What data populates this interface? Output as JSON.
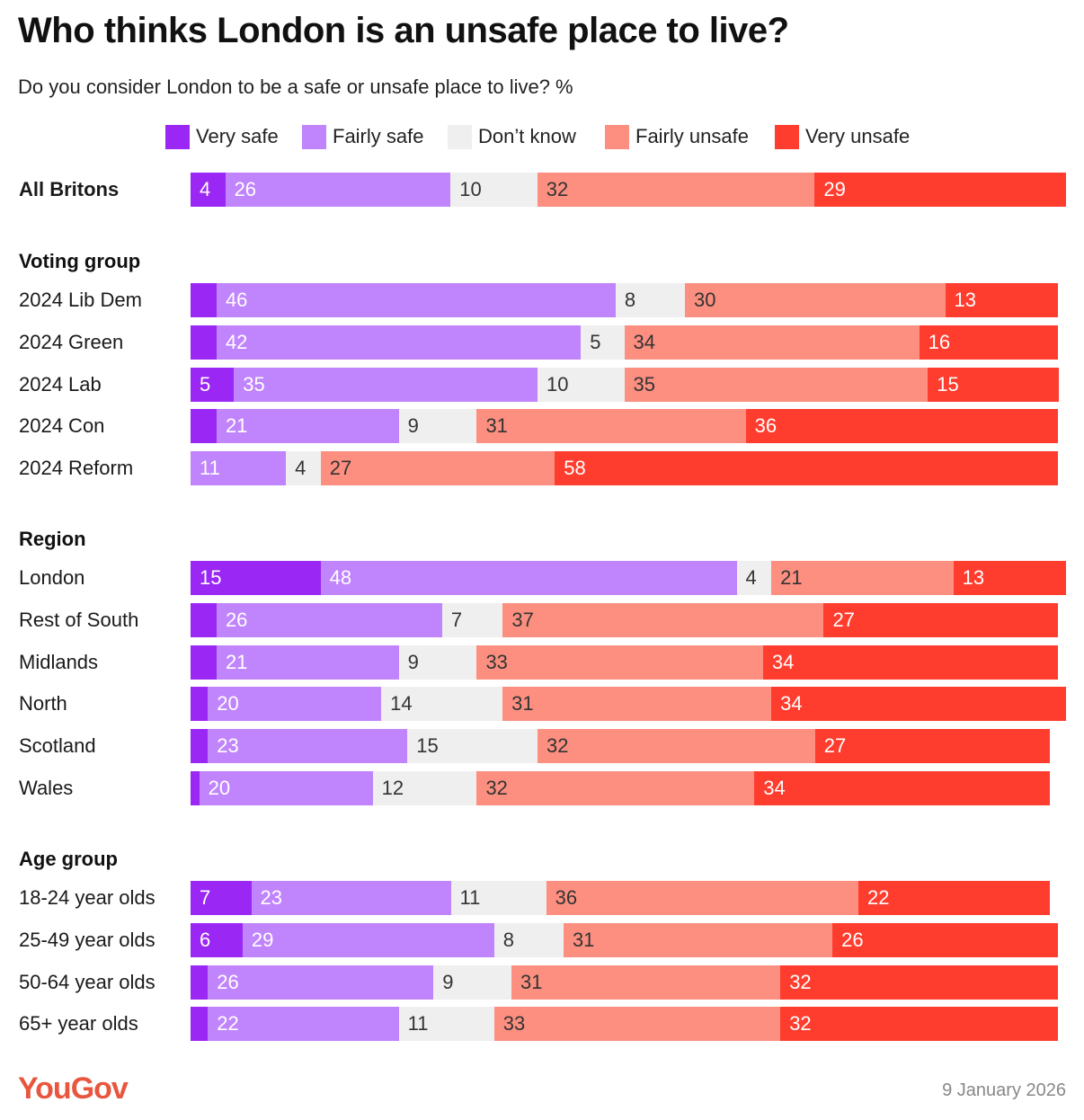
{
  "title": "Who thinks London is an unsafe place to live?",
  "subtitle": "Do you consider London to be a safe or unsafe place to live? %",
  "colors": {
    "very_safe": "#9b27f5",
    "fairly_safe": "#c084fc",
    "dont_know": "#efefef",
    "fairly_unsafe": "#fc8f80",
    "very_unsafe": "#ff3d2e",
    "brand": "#e8563f"
  },
  "legend": [
    {
      "key": "very_safe",
      "label": "Very safe"
    },
    {
      "key": "fairly_safe",
      "label": "Fairly safe"
    },
    {
      "key": "dont_know",
      "label": "Don’t know"
    },
    {
      "key": "fairly_unsafe",
      "label": "Fairly unsafe"
    },
    {
      "key": "very_unsafe",
      "label": "Very unsafe"
    }
  ],
  "chart_data": {
    "type": "bar",
    "orientation": "horizontal",
    "stacked": true,
    "legend_position": "top",
    "grid": false,
    "series_order": [
      "Very safe",
      "Fairly safe",
      "Don’t know",
      "Fairly unsafe",
      "Very unsafe"
    ],
    "groups": [
      {
        "heading": "",
        "rows": [
          {
            "label": "All Britons",
            "values": [
              4,
              26,
              10,
              32,
              29
            ]
          }
        ]
      },
      {
        "heading": "Voting group",
        "rows": [
          {
            "label": "2024 Lib Dem",
            "values": [
              3,
              46,
              8,
              30,
              13
            ]
          },
          {
            "label": "2024 Green",
            "values": [
              3,
              42,
              5,
              34,
              16
            ]
          },
          {
            "label": "2024 Lab",
            "values": [
              5,
              35,
              10,
              35,
              15
            ]
          },
          {
            "label": "2024 Con",
            "values": [
              3,
              21,
              9,
              31,
              36
            ]
          },
          {
            "label": "2024 Reform",
            "values": [
              0,
              11,
              4,
              27,
              58
            ]
          }
        ]
      },
      {
        "heading": "Region",
        "rows": [
          {
            "label": "London",
            "values": [
              15,
              48,
              4,
              21,
              13
            ]
          },
          {
            "label": "Rest of South",
            "values": [
              3,
              26,
              7,
              37,
              27
            ]
          },
          {
            "label": "Midlands",
            "values": [
              3,
              21,
              9,
              33,
              34
            ]
          },
          {
            "label": "North",
            "values": [
              2,
              20,
              14,
              31,
              34
            ]
          },
          {
            "label": "Scotland",
            "values": [
              2,
              23,
              15,
              32,
              27
            ]
          },
          {
            "label": "Wales",
            "values": [
              1,
              20,
              12,
              32,
              34
            ]
          }
        ]
      },
      {
        "heading": "Age group",
        "rows": [
          {
            "label": "18-24 year olds",
            "values": [
              7,
              23,
              11,
              36,
              22
            ]
          },
          {
            "label": "25-49 year olds",
            "values": [
              6,
              29,
              8,
              31,
              26
            ]
          },
          {
            "label": "50-64 year olds",
            "values": [
              2,
              26,
              9,
              31,
              32
            ]
          },
          {
            "label": "65+ year olds",
            "values": [
              2,
              22,
              11,
              33,
              32
            ]
          }
        ]
      }
    ]
  },
  "footer": {
    "logo": "YouGov",
    "date": "9 January 2026"
  }
}
